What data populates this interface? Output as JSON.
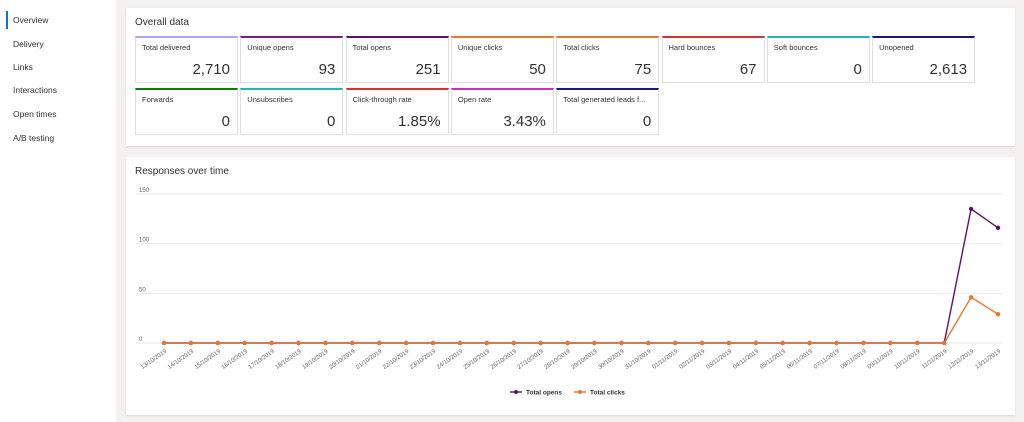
{
  "sidebar": {
    "items": [
      {
        "label": "Overview",
        "active": true
      },
      {
        "label": "Delivery"
      },
      {
        "label": "Links"
      },
      {
        "label": "Interactions"
      },
      {
        "label": "Open times"
      },
      {
        "label": "A/B testing"
      }
    ]
  },
  "overall": {
    "title": "Overall data",
    "tiles": [
      {
        "label": "Total delivered",
        "value": "2,710",
        "color": "#b4a0ff"
      },
      {
        "label": "Unique opens",
        "value": "93",
        "color": "#7a1f7a"
      },
      {
        "label": "Total opens",
        "value": "251",
        "color": "#5c126b"
      },
      {
        "label": "Unique clicks",
        "value": "50",
        "color": "#e8762d"
      },
      {
        "label": "Total clicks",
        "value": "75",
        "color": "#e8762d"
      },
      {
        "label": "Hard bounces",
        "value": "67",
        "color": "#d13438"
      },
      {
        "label": "Soft bounces",
        "value": "0",
        "color": "#2ab3b3"
      },
      {
        "label": "Unopened",
        "value": "2,613",
        "color": "#1a1a7a"
      },
      {
        "label": "Forwards",
        "value": "0",
        "color": "#107c10"
      },
      {
        "label": "Unsubscribes",
        "value": "0",
        "color": "#2ab3b3"
      },
      {
        "label": "Click-through rate",
        "value": "1.85%",
        "color": "#d13438"
      },
      {
        "label": "Open rate",
        "value": "3.43%",
        "color": "#c239b3"
      },
      {
        "label": "Total generated leads f...",
        "value": "0",
        "color": "#1a1a7a"
      }
    ]
  },
  "responses": {
    "title": "Responses over time"
  },
  "chart_data": {
    "type": "line",
    "title": "Responses over time",
    "xlabel": "",
    "ylabel": "",
    "ylim": [
      0,
      150
    ],
    "yticks": [
      0,
      50,
      100,
      150
    ],
    "grid": true,
    "legend_position": "bottom",
    "x": [
      "13/10/2019",
      "14/10/2019",
      "15/10/2019",
      "16/10/2019",
      "17/10/2019",
      "18/10/2019",
      "19/10/2019",
      "20/10/2019",
      "21/10/2019",
      "22/10/2019",
      "23/10/2019",
      "24/10/2019",
      "25/10/2019",
      "26/10/2019",
      "27/10/2019",
      "28/10/2019",
      "29/10/2019",
      "30/10/2019",
      "31/10/2019",
      "01/11/2019",
      "02/11/2019",
      "03/11/2019",
      "04/11/2019",
      "05/11/2019",
      "06/11/2019",
      "07/11/2019",
      "08/11/2019",
      "09/11/2019",
      "10/11/2019",
      "11/11/2019",
      "12/11/2019",
      "13/11/2019"
    ],
    "series": [
      {
        "name": "Total opens",
        "color": "#5c126b",
        "values": [
          0,
          0,
          0,
          0,
          0,
          0,
          0,
          0,
          0,
          0,
          0,
          0,
          0,
          0,
          0,
          0,
          0,
          0,
          0,
          0,
          0,
          0,
          0,
          0,
          0,
          0,
          0,
          0,
          0,
          0,
          135,
          116
        ]
      },
      {
        "name": "Total clicks",
        "color": "#e8762d",
        "values": [
          0,
          0,
          0,
          0,
          0,
          0,
          0,
          0,
          0,
          0,
          0,
          0,
          0,
          0,
          0,
          0,
          0,
          0,
          0,
          0,
          0,
          0,
          0,
          0,
          0,
          0,
          0,
          0,
          0,
          0,
          46,
          29
        ]
      }
    ]
  }
}
